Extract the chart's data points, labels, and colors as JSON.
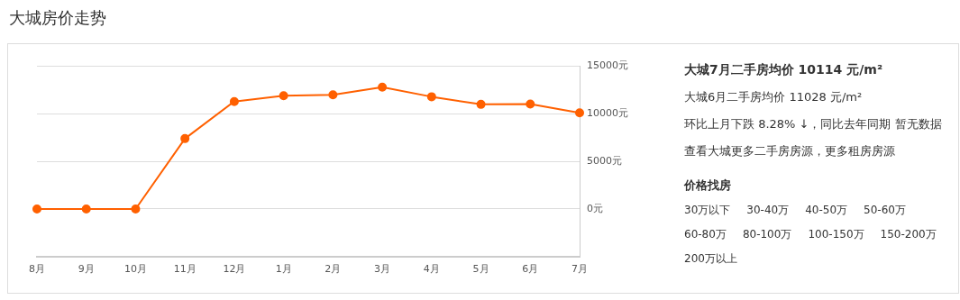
{
  "chart_data": {
    "type": "line",
    "title": "大城房价走势",
    "categories": [
      "8月",
      "9月",
      "10月",
      "11月",
      "12月",
      "1月",
      "2月",
      "3月",
      "4月",
      "5月",
      "6月",
      "7月"
    ],
    "series": [
      {
        "color": "#ff6000",
        "values": [
          0,
          0,
          0,
          7400,
          11300,
          11900,
          12000,
          12800,
          11800,
          11000,
          11028,
          10114
        ]
      }
    ],
    "ylim": [
      -5000,
      15000
    ],
    "yticks": [
      {
        "value": -5000,
        "label": null
      },
      {
        "value": 0,
        "label": "0元"
      },
      {
        "value": 5000,
        "label": "5000元"
      },
      {
        "value": 10000,
        "label": "10000元"
      },
      {
        "value": 15000,
        "label": "15000元"
      }
    ],
    "grid": "y",
    "marker": "circle",
    "line_style": "solid",
    "legend": false,
    "annotations": [
      "大城7月二手房均价 10114 元/m²",
      "大城6月二手房均价 11028 元/m²",
      "环比上月下跌 8.28% ↓，同比去年同期 暂无数据",
      "查看大城更多二手房房源，更多租房房源",
      "价格找房",
      "30万以下",
      "30-40万",
      "40-50万",
      "50-60万",
      "60-80万",
      "80-100万",
      "100-150万",
      "150-200万",
      "200万以上"
    ]
  }
}
